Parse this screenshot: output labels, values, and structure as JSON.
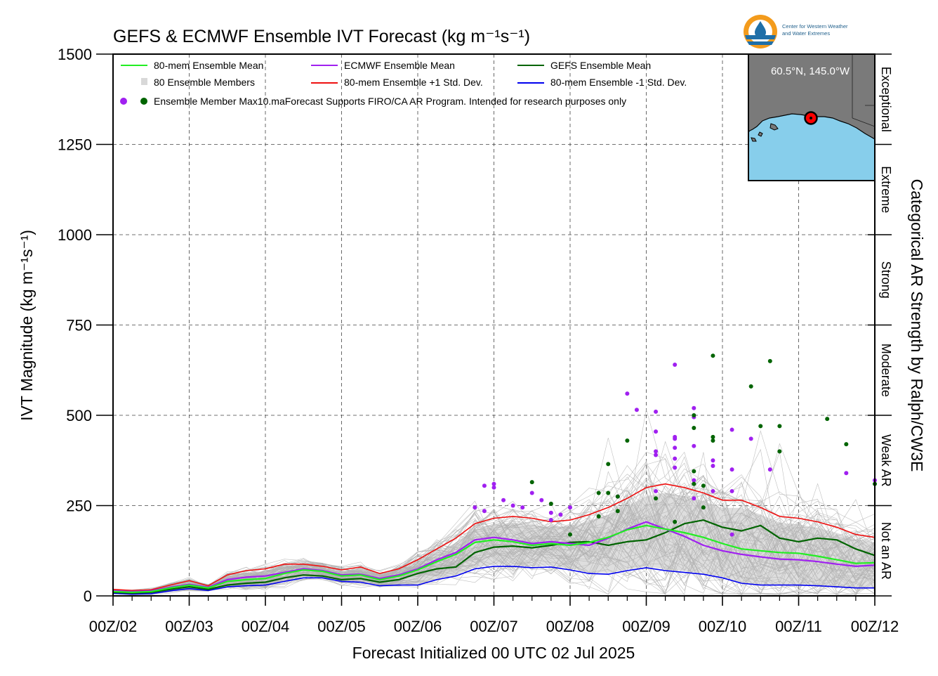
{
  "chart_data": {
    "type": "line",
    "title": "GEFS & ECMWF Ensemble IVT Forecast (kg m⁻¹s⁻¹)",
    "ylabel": "IVT Magnitude (kg m⁻¹s⁻¹)",
    "xlabel": "Forecast Initialized 00 UTC 02 Jul 2025",
    "right_label": "Categorical AR Strength by Ralph/CW3E",
    "xlim": [
      0,
      240
    ],
    "ylim": [
      0,
      1500
    ],
    "grid": true,
    "x_ticks": [
      0,
      24,
      48,
      72,
      96,
      120,
      144,
      168,
      192,
      216,
      240
    ],
    "x_ticklabels": [
      "00Z/02",
      "00Z/03",
      "00Z/04",
      "00Z/05",
      "00Z/06",
      "00Z/07",
      "00Z/08",
      "00Z/09",
      "00Z/10",
      "00Z/11",
      "00Z/12"
    ],
    "y_ticks": [
      0,
      250,
      500,
      750,
      1000,
      1250,
      1500
    ],
    "y_ticklabels": [
      "0",
      "250",
      "500",
      "750",
      "1000",
      "1250",
      "1500"
    ],
    "categories": [
      {
        "label": "Not an AR",
        "range": [
          0,
          250
        ]
      },
      {
        "label": "Weak AR",
        "range": [
          250,
          500
        ]
      },
      {
        "label": "Moderate",
        "range": [
          500,
          750
        ]
      },
      {
        "label": "Strong",
        "range": [
          750,
          1000
        ]
      },
      {
        "label": "Extreme",
        "range": [
          1000,
          1250
        ]
      },
      {
        "label": "Exceptional",
        "range": [
          1250,
          1500
        ]
      }
    ],
    "x": [
      0,
      6,
      12,
      18,
      24,
      30,
      36,
      42,
      48,
      54,
      60,
      66,
      72,
      78,
      84,
      90,
      96,
      102,
      108,
      114,
      120,
      126,
      132,
      138,
      144,
      150,
      156,
      162,
      168,
      174,
      180,
      186,
      192,
      198,
      204,
      210,
      216,
      222,
      228,
      234,
      240
    ],
    "series": [
      {
        "name": "80-mem Ensemble Mean",
        "color": "#22ee22",
        "width": 2.2,
        "values": [
          12,
          10,
          12,
          22,
          30,
          22,
          40,
          45,
          48,
          62,
          72,
          68,
          55,
          58,
          45,
          55,
          72,
          95,
          115,
          148,
          155,
          150,
          140,
          145,
          140,
          148,
          162,
          183,
          195,
          185,
          175,
          162,
          145,
          130,
          125,
          120,
          118,
          110,
          100,
          90,
          92
        ]
      },
      {
        "name": "ECMWF Ensemble Mean",
        "color": "#a020f0",
        "width": 2.2,
        "values": [
          14,
          12,
          14,
          24,
          32,
          24,
          45,
          52,
          55,
          65,
          75,
          70,
          58,
          60,
          48,
          58,
          75,
          100,
          120,
          155,
          162,
          155,
          145,
          150,
          145,
          140,
          160,
          185,
          205,
          185,
          165,
          140,
          125,
          115,
          108,
          102,
          100,
          95,
          88,
          82,
          85
        ]
      },
      {
        "name": "GEFS Ensemble Mean",
        "color": "#006400",
        "width": 2.2,
        "values": [
          10,
          8,
          10,
          18,
          25,
          18,
          30,
          35,
          38,
          50,
          58,
          55,
          45,
          48,
          38,
          45,
          62,
          75,
          80,
          120,
          135,
          138,
          133,
          140,
          148,
          150,
          140,
          150,
          155,
          175,
          200,
          210,
          190,
          180,
          195,
          160,
          150,
          160,
          155,
          130,
          112
        ]
      },
      {
        "name": "80-mem Ensemble +1 Std. Dev.",
        "color": "#ee1111",
        "width": 1.6,
        "values": [
          18,
          15,
          17,
          30,
          42,
          28,
          58,
          70,
          75,
          88,
          88,
          82,
          72,
          80,
          62,
          75,
          100,
          130,
          160,
          200,
          215,
          220,
          215,
          205,
          210,
          225,
          245,
          270,
          300,
          310,
          300,
          285,
          265,
          265,
          245,
          220,
          215,
          205,
          190,
          170,
          162
        ]
      },
      {
        "name": "80-mem Ensemble -1 Std. Dev.",
        "color": "#0000ee",
        "width": 1.6,
        "values": [
          7,
          5,
          6,
          14,
          20,
          15,
          25,
          28,
          30,
          40,
          50,
          50,
          40,
          38,
          28,
          30,
          30,
          45,
          55,
          75,
          82,
          82,
          78,
          80,
          72,
          62,
          60,
          70,
          78,
          70,
          65,
          60,
          50,
          35,
          30,
          30,
          30,
          28,
          25,
          22,
          22
        ]
      }
    ],
    "members": {
      "name": "80 Ensemble Members",
      "color": "#b0b0b0",
      "count": 80
    },
    "member_max_points": {
      "name": "Ensemble Member Max",
      "ecmwf_color": "#a020f0",
      "gefs_color": "#006400",
      "ecmwf": [
        [
          114,
          245
        ],
        [
          117,
          235
        ],
        [
          117,
          305
        ],
        [
          120,
          310
        ],
        [
          120,
          300
        ],
        [
          123,
          265
        ],
        [
          126,
          250
        ],
        [
          129,
          245
        ],
        [
          132,
          285
        ],
        [
          135,
          265
        ],
        [
          138,
          230
        ],
        [
          138,
          210
        ],
        [
          141,
          225
        ],
        [
          144,
          245
        ],
        [
          159,
          275
        ],
        [
          162,
          560
        ],
        [
          165,
          515
        ],
        [
          171,
          510
        ],
        [
          171,
          455
        ],
        [
          171,
          400
        ],
        [
          171,
          390
        ],
        [
          171,
          290
        ],
        [
          177,
          640
        ],
        [
          177,
          440
        ],
        [
          177,
          435
        ],
        [
          177,
          410
        ],
        [
          177,
          380
        ],
        [
          177,
          355
        ],
        [
          183,
          520
        ],
        [
          183,
          495
        ],
        [
          183,
          415
        ],
        [
          183,
          320
        ],
        [
          183,
          270
        ],
        [
          189,
          375
        ],
        [
          189,
          360
        ],
        [
          189,
          290
        ],
        [
          195,
          460
        ],
        [
          195,
          350
        ],
        [
          195,
          290
        ],
        [
          195,
          170
        ],
        [
          201,
          435
        ],
        [
          207,
          350
        ],
        [
          231,
          340
        ],
        [
          240,
          320
        ]
      ],
      "gefs": [
        [
          132,
          315
        ],
        [
          138,
          255
        ],
        [
          144,
          170
        ],
        [
          153,
          285
        ],
        [
          153,
          220
        ],
        [
          156,
          365
        ],
        [
          156,
          285
        ],
        [
          159,
          235
        ],
        [
          159,
          275
        ],
        [
          162,
          430
        ],
        [
          171,
          270
        ],
        [
          177,
          205
        ],
        [
          183,
          500
        ],
        [
          183,
          465
        ],
        [
          183,
          345
        ],
        [
          183,
          310
        ],
        [
          186,
          305
        ],
        [
          186,
          245
        ],
        [
          189,
          665
        ],
        [
          189,
          440
        ],
        [
          189,
          430
        ],
        [
          201,
          580
        ],
        [
          204,
          470
        ],
        [
          207,
          650
        ],
        [
          210,
          470
        ],
        [
          210,
          400
        ],
        [
          225,
          490
        ],
        [
          231,
          420
        ],
        [
          240,
          310
        ]
      ]
    },
    "band": {
      "color": "#d8d8d8"
    }
  },
  "legend": {
    "items": [
      {
        "label": "80-mem Ensemble Mean",
        "color": "#22ee22",
        "style": "line"
      },
      {
        "label": "ECMWF Ensemble Mean",
        "color": "#a020f0",
        "style": "line"
      },
      {
        "label": "GEFS Ensemble Mean",
        "color": "#006400",
        "style": "line"
      },
      {
        "label": "80 Ensemble Members",
        "color": "#b0b0b0",
        "style": "multiline"
      },
      {
        "label": "80-mem Ensemble +1 Std. Dev.",
        "color": "#ee1111",
        "style": "line"
      },
      {
        "label": "80-mem Ensemble -1 Std. Dev.",
        "color": "#0000ee",
        "style": "line"
      }
    ],
    "max_label": "Ensemble Member Max",
    "note": "10.maForecast Supports FIRO/CA AR Program. Intended for research purposes only"
  },
  "inset_map": {
    "location_label": "60.5°N, 145.0°W",
    "land_color": "#7a7a7a",
    "water_color": "#87ceeb",
    "marker_color": "#ff0000"
  },
  "logo": {
    "line1": "Center for Western Weather",
    "line2": "and Water Extremes",
    "orange": "#f39b1c",
    "blue": "#1f6fa8"
  }
}
